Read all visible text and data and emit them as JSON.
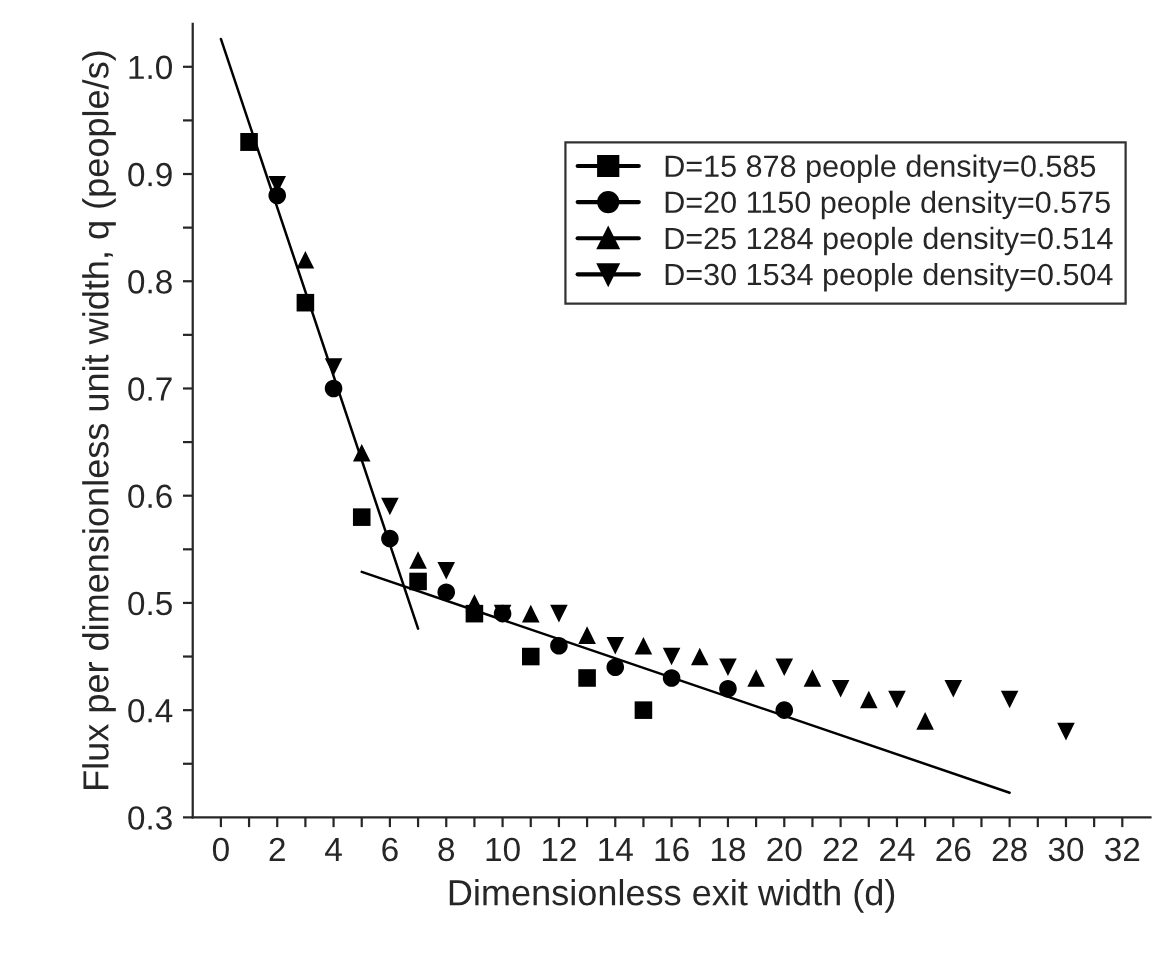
{
  "chart_data": {
    "type": "scatter",
    "xlabel": "Dimensionless exit width (d)",
    "ylabel": "Flux per dimensionless unit width, q (people/s)",
    "xlim": [
      -1,
      33
    ],
    "ylim": [
      0.3,
      1.04
    ],
    "xticks": [
      0,
      {
        "value": 1,
        "label": null
      },
      2,
      {
        "value": 3,
        "label": null
      },
      4,
      {
        "value": 5,
        "label": null
      },
      6,
      {
        "value": 7,
        "label": null
      },
      8,
      {
        "value": 9,
        "label": null
      },
      10,
      {
        "value": 11,
        "label": null
      },
      12,
      {
        "value": 13,
        "label": null
      },
      14,
      {
        "value": 15,
        "label": null
      },
      16,
      {
        "value": 17,
        "label": null
      },
      18,
      {
        "value": 19,
        "label": null
      },
      20,
      {
        "value": 21,
        "label": null
      },
      22,
      {
        "value": 23,
        "label": null
      },
      24,
      {
        "value": 25,
        "label": null
      },
      26,
      {
        "value": 27,
        "label": null
      },
      28,
      {
        "value": 29,
        "label": null
      },
      30,
      {
        "value": 31,
        "label": null
      },
      32
    ],
    "yticks": [
      {
        "value": 0.3,
        "label": "0.3"
      },
      {
        "value": 0.35,
        "label": null
      },
      {
        "value": 0.4,
        "label": "0.4"
      },
      {
        "value": 0.45,
        "label": null
      },
      {
        "value": 0.5,
        "label": "0.5"
      },
      {
        "value": 0.55,
        "label": null
      },
      {
        "value": 0.6,
        "label": "0.6"
      },
      {
        "value": 0.65,
        "label": null
      },
      {
        "value": 0.7,
        "label": "0.7"
      },
      {
        "value": 0.75,
        "label": null
      },
      {
        "value": 0.8,
        "label": "0.8"
      },
      {
        "value": 0.85,
        "label": null
      },
      {
        "value": 0.9,
        "label": "0.9"
      },
      {
        "value": 0.95,
        "label": null
      },
      {
        "value": 1.0,
        "label": "1.0"
      }
    ],
    "grid": false,
    "legend": "top right",
    "series": [
      {
        "name": "D=15 878 people density=0.585",
        "color": "#000000",
        "marker": "square",
        "x": [
          1,
          3,
          5,
          7,
          9,
          11,
          13,
          15
        ],
        "values": [
          0.93,
          0.78,
          0.58,
          0.52,
          0.49,
          0.45,
          0.43,
          0.4
        ]
      },
      {
        "name": "D=20 1150 people density=0.575",
        "color": "#000000",
        "marker": "circle",
        "x": [
          2,
          4,
          6,
          8,
          10,
          12,
          14,
          16,
          18,
          20
        ],
        "values": [
          0.88,
          0.7,
          0.56,
          0.51,
          0.49,
          0.46,
          0.44,
          0.43,
          0.42,
          0.4
        ]
      },
      {
        "name": "D=25 1284 people density=0.514",
        "color": "#000000",
        "marker": "triangle",
        "x": [
          1,
          3,
          5,
          7,
          9,
          11,
          13,
          15,
          17,
          19,
          21,
          23,
          25
        ],
        "values": [
          0.93,
          0.82,
          0.64,
          0.54,
          0.5,
          0.49,
          0.47,
          0.46,
          0.45,
          0.43,
          0.43,
          0.41,
          0.39
        ]
      },
      {
        "name": "D=30 1534 people density=0.504",
        "color": "#000000",
        "marker": "triangle_down",
        "x": [
          2,
          4,
          6,
          8,
          10,
          12,
          14,
          16,
          18,
          20,
          22,
          24,
          26,
          28,
          30
        ],
        "values": [
          0.89,
          0.72,
          0.59,
          0.53,
          0.49,
          0.49,
          0.46,
          0.45,
          0.44,
          0.44,
          0.42,
          0.41,
          0.42,
          0.41,
          0.38
        ]
      },
      {
        "type": "line",
        "color": "#000000",
        "x": [
          0,
          7
        ],
        "values": [
          1.026,
          0.476
        ]
      },
      {
        "type": "line",
        "color": "#000000",
        "x": [
          5,
          28
        ],
        "values": [
          0.529,
          0.323
        ]
      }
    ]
  }
}
